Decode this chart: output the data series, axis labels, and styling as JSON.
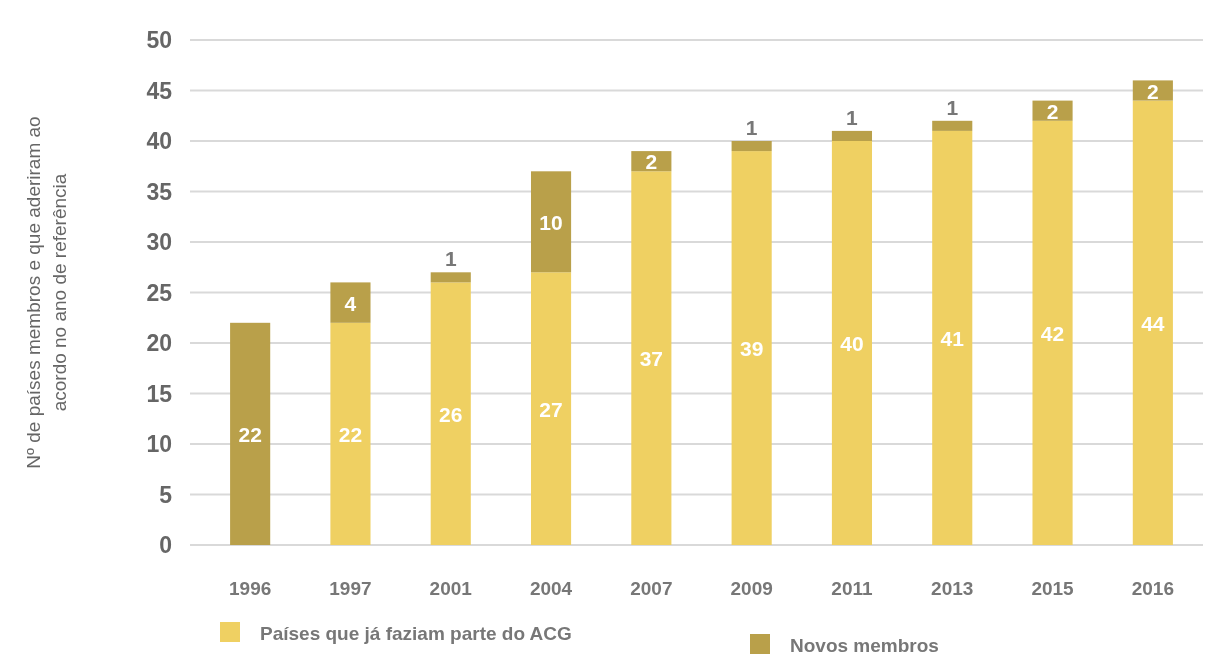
{
  "chart_data": {
    "type": "bar",
    "stacked": true,
    "ylabel": "Nº de países membros e que aderiram ao acordo no ano de referência",
    "categories": [
      "1996",
      "1997",
      "2001",
      "2004",
      "2007",
      "2009",
      "2011",
      "2013",
      "2015",
      "2016"
    ],
    "series": [
      {
        "name": "Países que já faziam parte do ACG",
        "color": "#efd062",
        "values": [
          0,
          22,
          26,
          27,
          37,
          39,
          40,
          41,
          42,
          44
        ],
        "value_labels": [
          null,
          "22",
          "26",
          "27",
          "37",
          "39",
          "40",
          "41",
          "42",
          "44"
        ]
      },
      {
        "name": "Novos membros",
        "color": "#b9a04a",
        "values": [
          22,
          4,
          1,
          10,
          2,
          1,
          1,
          1,
          2,
          2
        ],
        "value_labels": [
          "22",
          "4",
          "1",
          "10",
          "2",
          "1",
          "1",
          "1",
          "2",
          "2"
        ]
      }
    ],
    "ylim": [
      0,
      50
    ],
    "yticks": [
      0,
      5,
      10,
      15,
      20,
      25,
      30,
      35,
      40,
      45,
      50
    ],
    "grid": "y",
    "legend": "bottom"
  }
}
